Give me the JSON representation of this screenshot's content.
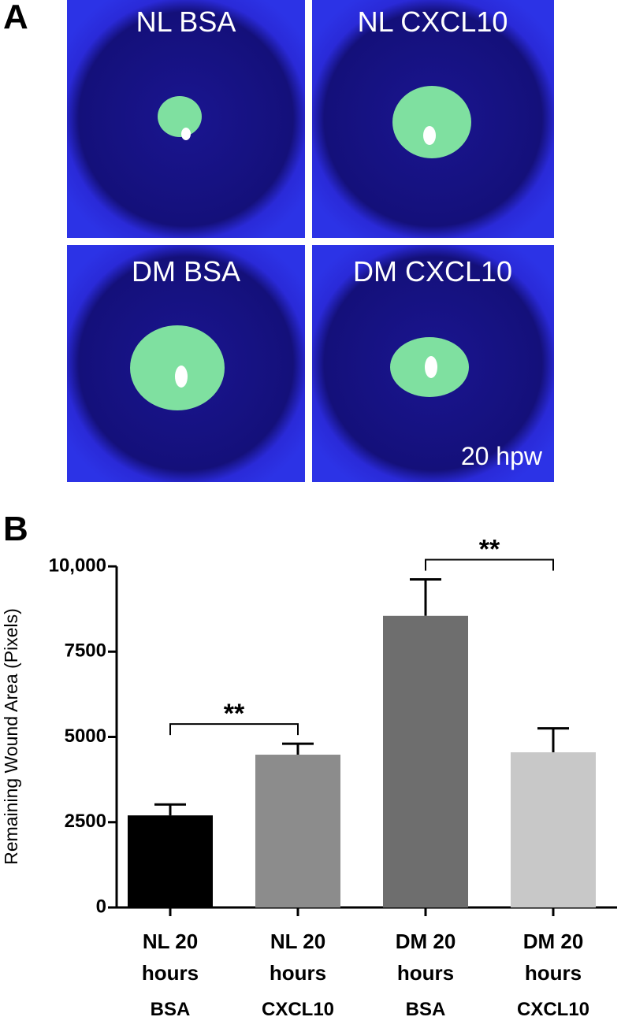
{
  "panel_a": {
    "label": "A",
    "images": [
      "NL BSA",
      "NL CXCL10",
      "DM BSA",
      "DM CXCL10"
    ],
    "note": "20 hpw"
  },
  "chart_data": {
    "type": "bar",
    "panel_label": "B",
    "categories": [
      "NL 20 hours",
      "NL 20 hours",
      "DM 20 hours",
      "DM 20 hours"
    ],
    "treatments": [
      "BSA",
      "CXCL10",
      "BSA",
      "CXCL10"
    ],
    "values": [
      2700,
      4480,
      8550,
      4550
    ],
    "errors": [
      320,
      320,
      1070,
      700
    ],
    "colors": [
      "#000000",
      "#8c8c8c",
      "#6e6e6e",
      "#c8c8c8"
    ],
    "ylabel": "Remaining Wound Area (Pixels)",
    "ylim": [
      0,
      10000
    ],
    "yticks": [
      0,
      2500,
      5000,
      7500,
      {
        "value": 10000,
        "label": "10,000"
      }
    ],
    "significance": [
      {
        "from": 0,
        "to": 1,
        "label": "**"
      },
      {
        "from": 2,
        "to": 3,
        "label": "**"
      }
    ]
  }
}
